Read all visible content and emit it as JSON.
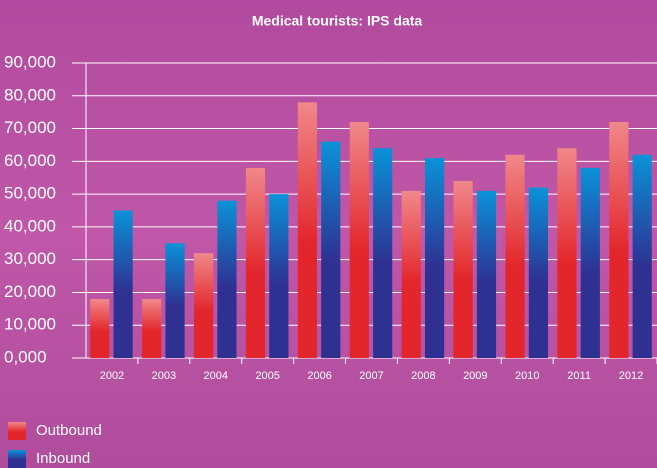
{
  "chart_data": {
    "type": "bar",
    "title": "Medical tourists: IPS data",
    "categories": [
      "2002",
      "2003",
      "2004",
      "2005",
      "2006",
      "2007",
      "2008",
      "2009",
      "2010",
      "2011",
      "2012"
    ],
    "series": [
      {
        "name": "Outbound",
        "color": "#e3262b",
        "values": [
          18000,
          18000,
          32000,
          58000,
          78000,
          72000,
          51000,
          54000,
          62000,
          64000,
          72000
        ]
      },
      {
        "name": "Inbound",
        "color": "#2e3192",
        "values": [
          45000,
          35000,
          48000,
          50000,
          66000,
          64000,
          61000,
          51000,
          52000,
          58000,
          62000
        ]
      }
    ],
    "ylim": [
      0,
      90000
    ],
    "yticks": [
      {
        "value": 0,
        "label": "0,000"
      },
      {
        "value": 10000,
        "label": "10,000"
      },
      {
        "value": 20000,
        "label": "20,000"
      },
      {
        "value": 30000,
        "label": "30,000"
      },
      {
        "value": 40000,
        "label": "40,000"
      },
      {
        "value": 50000,
        "label": "50,000"
      },
      {
        "value": 60000,
        "label": "60,000"
      },
      {
        "value": 70000,
        "label": "70,000"
      },
      {
        "value": 80000,
        "label": "80,000"
      },
      {
        "value": 90000,
        "label": "90,000"
      }
    ],
    "grid": true
  }
}
